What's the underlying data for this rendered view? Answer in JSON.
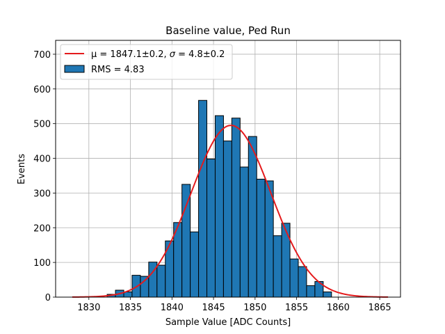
{
  "chart_data": {
    "type": "bar",
    "title": "Baseline value, Ped Run",
    "xlabel": "Sample Value [ADC Counts]",
    "ylabel": "Events",
    "xlim": [
      1826,
      1867.5
    ],
    "ylim": [
      0,
      740
    ],
    "xticks": [
      1830,
      1835,
      1840,
      1845,
      1850,
      1855,
      1860,
      1865
    ],
    "yticks": [
      0,
      100,
      200,
      300,
      400,
      500,
      600,
      700
    ],
    "grid": true,
    "legend": "top-left",
    "histogram": {
      "name": "RMS = 4.83",
      "bin_edges": [
        1832.2,
        1833.2,
        1834.2,
        1835.2,
        1836.2,
        1837.2,
        1838.2,
        1839.2,
        1840.2,
        1841.2,
        1842.2,
        1843.2,
        1844.2,
        1845.2,
        1846.2,
        1847.2,
        1848.2,
        1849.2,
        1850.2,
        1851.2,
        1852.2,
        1853.2,
        1854.2,
        1855.2,
        1856.2,
        1857.2,
        1858.2,
        1859.2
      ],
      "counts": [
        8,
        20,
        15,
        63,
        60,
        101,
        92,
        162,
        215,
        325,
        188,
        567,
        398,
        523,
        450,
        516,
        375,
        463,
        340,
        335,
        177,
        213,
        110,
        88,
        33,
        45,
        15
      ],
      "color": "#1f77b4",
      "edgecolor": "#000000"
    },
    "fit": {
      "type": "gaussian",
      "name_prefix": "μ = 1847.1±0.2, ",
      "name_sigma": "σ",
      "name_suffix": " = 4.8±0.2",
      "mu": 1847.1,
      "sigma": 4.8,
      "amplitude": 495,
      "x_range": [
        1828,
        1866
      ],
      "color": "#e41a1c"
    }
  }
}
